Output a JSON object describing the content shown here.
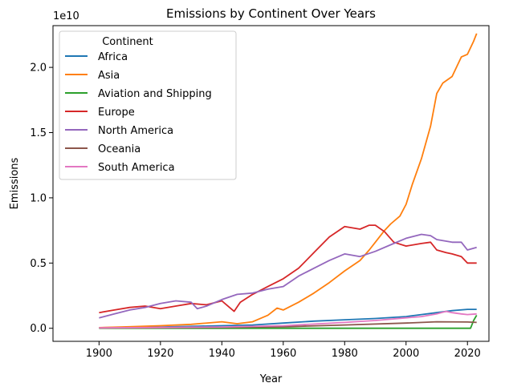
{
  "chart_data": {
    "type": "line",
    "title": "Emissions by Continent Over Years",
    "xlabel": "Year",
    "ylabel": "Emissions",
    "y_multiplier_label": "1e10",
    "xlim": [
      1885,
      2027
    ],
    "ylim": [
      -0.1,
      2.32
    ],
    "x_ticks": [
      1900,
      1920,
      1940,
      1960,
      1980,
      2000,
      2020
    ],
    "x_tick_labels": [
      "1900",
      "1920",
      "1940",
      "1960",
      "1980",
      "2000",
      "2020"
    ],
    "y_ticks": [
      0.0,
      0.5,
      1.0,
      1.5,
      2.0
    ],
    "y_tick_labels": [
      "0.0",
      "0.5",
      "1.0",
      "1.5",
      "2.0"
    ],
    "grid": false,
    "legend": {
      "title": "Continent",
      "position": "top-left"
    },
    "series": [
      {
        "name": "Africa",
        "color": "#1f77b4",
        "x": [
          1900,
          1920,
          1940,
          1950,
          1960,
          1970,
          1980,
          1990,
          2000,
          2005,
          2010,
          2015,
          2020,
          2023
        ],
        "y": [
          0.005,
          0.01,
          0.02,
          0.025,
          0.04,
          0.055,
          0.065,
          0.075,
          0.09,
          0.105,
          0.12,
          0.135,
          0.145,
          0.145
        ]
      },
      {
        "name": "Asia",
        "color": "#ff7f0e",
        "x": [
          1900,
          1910,
          1920,
          1930,
          1940,
          1945,
          1950,
          1955,
          1958,
          1960,
          1965,
          1970,
          1975,
          1980,
          1985,
          1988,
          1990,
          1993,
          1995,
          1998,
          2000,
          2002,
          2005,
          2008,
          2010,
          2012,
          2015,
          2018,
          2020,
          2022,
          2023
        ],
        "y": [
          0.005,
          0.012,
          0.02,
          0.03,
          0.05,
          0.035,
          0.05,
          0.1,
          0.155,
          0.14,
          0.2,
          0.27,
          0.35,
          0.44,
          0.52,
          0.6,
          0.66,
          0.75,
          0.8,
          0.86,
          0.95,
          1.1,
          1.3,
          1.55,
          1.8,
          1.88,
          1.93,
          2.08,
          2.1,
          2.2,
          2.26
        ]
      },
      {
        "name": "Aviation and Shipping",
        "color": "#2ca02c",
        "x": [
          1900,
          1950,
          2000,
          2021,
          2022,
          2023
        ],
        "y": [
          0.0,
          0.0,
          0.0,
          0.0,
          0.06,
          0.1
        ]
      },
      {
        "name": "Europe",
        "color": "#d62728",
        "x": [
          1900,
          1905,
          1910,
          1915,
          1920,
          1925,
          1930,
          1935,
          1940,
          1944,
          1946,
          1950,
          1955,
          1960,
          1965,
          1970,
          1975,
          1980,
          1985,
          1988,
          1990,
          1993,
          1996,
          2000,
          2005,
          2008,
          2010,
          2013,
          2015,
          2018,
          2020,
          2023
        ],
        "y": [
          0.12,
          0.14,
          0.16,
          0.17,
          0.15,
          0.17,
          0.19,
          0.18,
          0.21,
          0.13,
          0.2,
          0.26,
          0.32,
          0.38,
          0.46,
          0.58,
          0.7,
          0.78,
          0.76,
          0.79,
          0.79,
          0.74,
          0.66,
          0.63,
          0.65,
          0.66,
          0.6,
          0.58,
          0.57,
          0.55,
          0.5,
          0.5
        ]
      },
      {
        "name": "North America",
        "color": "#9467bd",
        "x": [
          1900,
          1905,
          1910,
          1915,
          1920,
          1925,
          1930,
          1932,
          1935,
          1940,
          1945,
          1950,
          1955,
          1960,
          1965,
          1970,
          1975,
          1980,
          1985,
          1990,
          1995,
          2000,
          2005,
          2008,
          2010,
          2015,
          2018,
          2020,
          2023
        ],
        "y": [
          0.08,
          0.11,
          0.14,
          0.16,
          0.19,
          0.21,
          0.2,
          0.15,
          0.17,
          0.22,
          0.26,
          0.27,
          0.3,
          0.32,
          0.4,
          0.46,
          0.52,
          0.57,
          0.55,
          0.59,
          0.64,
          0.69,
          0.72,
          0.71,
          0.68,
          0.66,
          0.66,
          0.6,
          0.62
        ]
      },
      {
        "name": "Oceania",
        "color": "#8c564b",
        "x": [
          1900,
          1920,
          1940,
          1960,
          1980,
          2000,
          2010,
          2020,
          2023
        ],
        "y": [
          0.002,
          0.004,
          0.007,
          0.012,
          0.025,
          0.04,
          0.05,
          0.048,
          0.045
        ]
      },
      {
        "name": "South America",
        "color": "#e377c2",
        "x": [
          1900,
          1920,
          1940,
          1960,
          1980,
          1990,
          2000,
          2005,
          2010,
          2013,
          2015,
          2018,
          2020,
          2023
        ],
        "y": [
          0.003,
          0.006,
          0.01,
          0.02,
          0.045,
          0.06,
          0.08,
          0.09,
          0.11,
          0.13,
          0.12,
          0.11,
          0.105,
          0.11
        ]
      }
    ]
  }
}
